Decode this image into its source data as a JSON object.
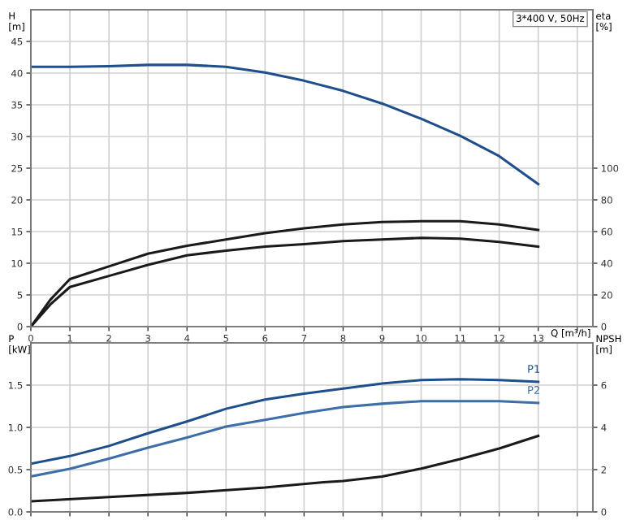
{
  "chart_data": [
    {
      "type": "line",
      "xlabel": "Q [m³/h]",
      "ylabel": "H\n[m]",
      "y2label": "eta\n[%]",
      "annotations": [
        "3*400 V, 50Hz"
      ],
      "grid": true,
      "legend": false,
      "marker": "none",
      "line_style": "solid",
      "xlim": [
        0,
        14.4
      ],
      "xticks": [
        0,
        1,
        2,
        3,
        4,
        5,
        6,
        7,
        8,
        9,
        10,
        11,
        12,
        13,
        {
          "value": 14,
          "label": null
        }
      ],
      "ylim": [
        0,
        50
      ],
      "yticks": [
        0,
        5,
        10,
        15,
        20,
        25,
        30,
        35,
        40,
        45
      ],
      "y2lim": [
        0,
        200
      ],
      "y2ticks": [
        0,
        20,
        40,
        60,
        80,
        100
      ],
      "series": [
        {
          "color": "#1f4e8c",
          "x": [
            0,
            1,
            2,
            3,
            4,
            5,
            6,
            7,
            8,
            9,
            10,
            11,
            12,
            13
          ],
          "values": [
            41,
            41,
            41.1,
            41.3,
            41.3,
            41,
            40.1,
            38.8,
            37.2,
            35.2,
            32.8,
            30.1,
            26.9,
            22.5
          ]
        },
        {
          "color": "#1a1a1a",
          "axis": "y2",
          "x": [
            0,
            0.5,
            1,
            2,
            3,
            4,
            5,
            6,
            7,
            8,
            9,
            10,
            11,
            12,
            13
          ],
          "values": [
            0,
            17,
            30,
            38,
            46,
            51,
            55,
            59,
            62,
            64.5,
            66,
            66.5,
            66.5,
            64.5,
            61
          ]
        },
        {
          "color": "#1a1a1a",
          "axis": "y2",
          "x": [
            0,
            0.5,
            1,
            2,
            3,
            4,
            5,
            6,
            7,
            8,
            9,
            10,
            11,
            12,
            13
          ],
          "values": [
            0,
            14,
            25,
            32,
            39,
            45,
            48,
            50.5,
            52,
            54,
            55,
            56,
            55.5,
            53.5,
            50.5
          ]
        }
      ]
    },
    {
      "type": "line",
      "ylabel": "P\n[kW]",
      "y2label": "NPSH\n[m]",
      "grid": true,
      "legend": false,
      "marker": "none",
      "line_style": "solid",
      "tick_labels": "y",
      "xlim": [
        0,
        14.4
      ],
      "xticks": [
        0,
        1,
        2,
        3,
        4,
        5,
        6,
        7,
        8,
        9,
        10,
        11,
        12,
        13,
        14
      ],
      "ylim": [
        0,
        2
      ],
      "yticks": [
        {
          "value": 0,
          "label": "0.0"
        },
        {
          "value": 0.5,
          "label": "0.5"
        },
        {
          "value": 1,
          "label": "1.0"
        },
        {
          "value": 1.5,
          "label": "1.5"
        }
      ],
      "y2lim": [
        0,
        8
      ],
      "y2ticks": [
        0,
        2,
        4,
        6
      ],
      "series": [
        {
          "name": "P1",
          "color": "#1f4e8c",
          "x": [
            0,
            1,
            2,
            3,
            4,
            5,
            6,
            7,
            8,
            9,
            10,
            11,
            12,
            13
          ],
          "values": [
            0.57,
            0.66,
            0.78,
            0.93,
            1.07,
            1.22,
            1.33,
            1.4,
            1.46,
            1.52,
            1.56,
            1.57,
            1.56,
            1.54
          ]
        },
        {
          "name": "P2",
          "color": "#3d6ea8",
          "x": [
            0,
            1,
            2,
            3,
            4,
            5,
            6,
            7,
            8,
            9,
            10,
            11,
            12,
            13
          ],
          "values": [
            0.42,
            0.51,
            0.63,
            0.76,
            0.88,
            1.01,
            1.09,
            1.17,
            1.24,
            1.28,
            1.31,
            1.31,
            1.31,
            1.29
          ]
        },
        {
          "color": "#1a1a1a",
          "axis": "y2",
          "x": [
            0,
            2,
            4,
            6,
            7.5,
            8,
            9,
            10,
            11,
            12,
            13
          ],
          "values": [
            0.5,
            0.7,
            0.9,
            1.15,
            1.4,
            1.46,
            1.67,
            2.05,
            2.5,
            3.0,
            3.6
          ]
        }
      ]
    }
  ]
}
